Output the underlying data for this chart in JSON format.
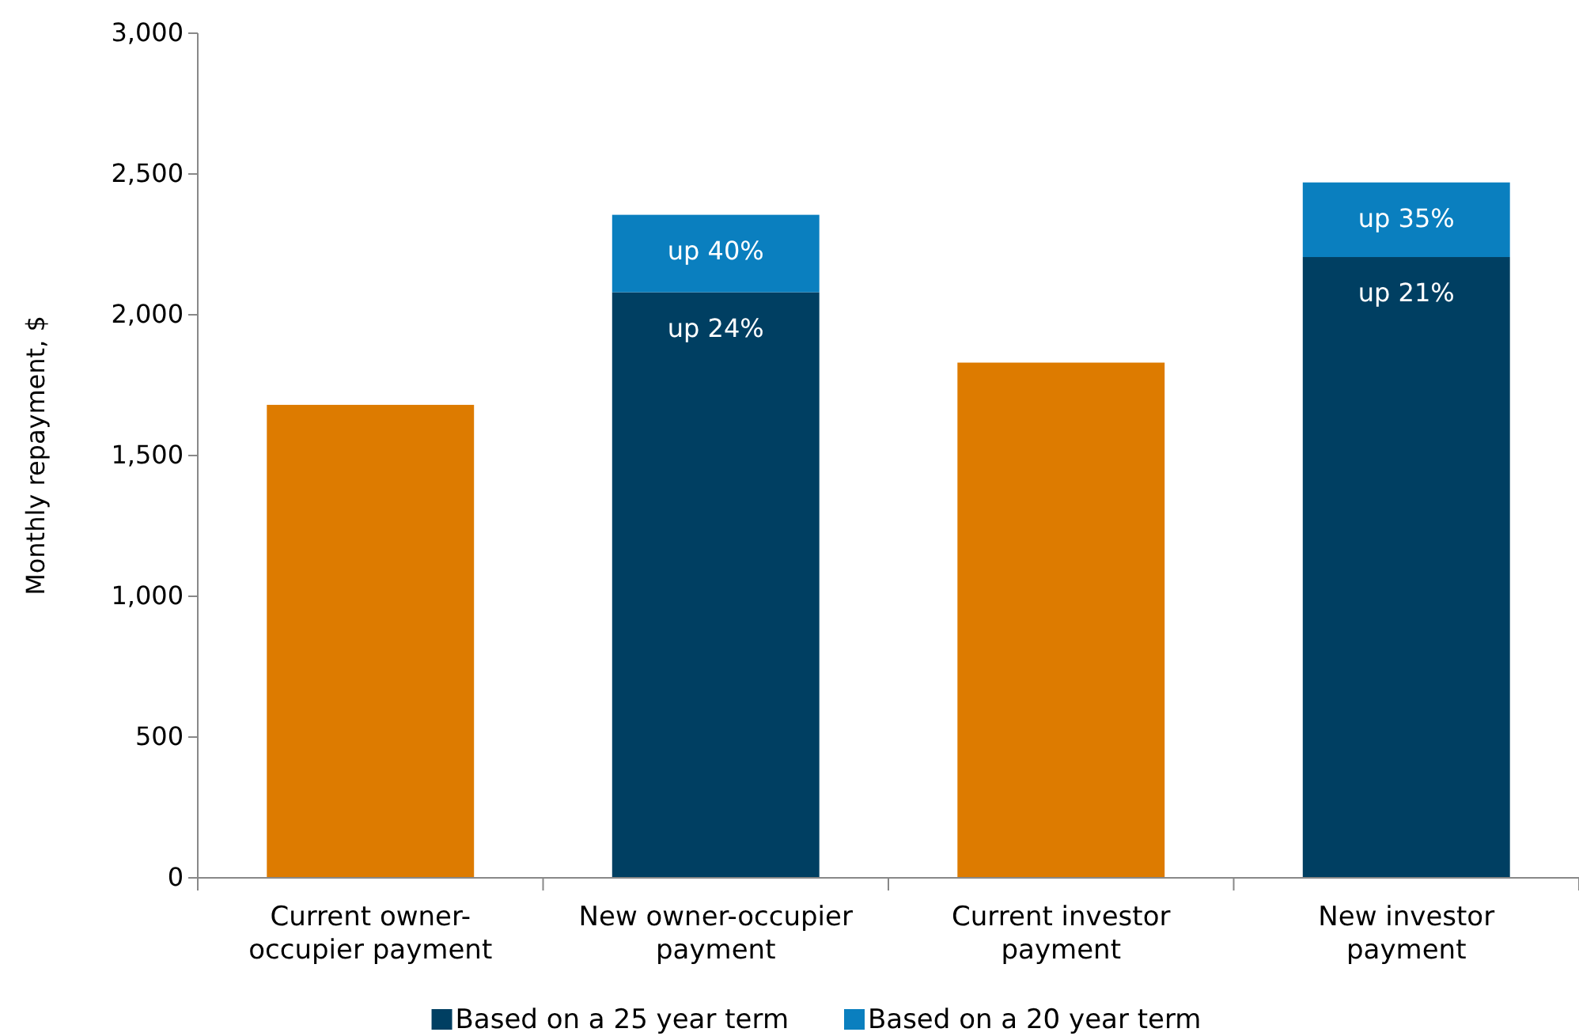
{
  "chart_data": {
    "type": "bar",
    "stacked": true,
    "ylabel": "Monthly repayment, $",
    "categories": [
      "Current owner-occupier payment",
      "New owner-occupier payment",
      "Current investor payment",
      "New investor payment"
    ],
    "series": [
      {
        "color": "#dd7b00",
        "values": [
          1680,
          null,
          1830,
          null
        ]
      },
      {
        "name": "Based on a 25 year term",
        "color": "#003f62",
        "values": [
          null,
          2080,
          null,
          2205
        ],
        "value_labels": [
          null,
          "up 24%",
          null,
          "up 21%"
        ]
      },
      {
        "name": "Based on a 20 year term",
        "color": "#0a7fbf",
        "values": [
          null,
          275,
          null,
          265
        ],
        "value_labels": [
          null,
          "up 40%",
          null,
          "up 35%"
        ]
      }
    ],
    "ylim": [
      0,
      3000
    ],
    "yticks": [
      {
        "value": 0,
        "label": "0"
      },
      {
        "value": 500,
        "label": "500"
      },
      {
        "value": 1000,
        "label": "1,000"
      },
      {
        "value": 1500,
        "label": "1,500"
      },
      {
        "value": 2000,
        "label": "2,000"
      },
      {
        "value": 2500,
        "label": "2,500"
      },
      {
        "value": 3000,
        "label": "3,000"
      }
    ],
    "grid": false,
    "legend": "bottom"
  }
}
